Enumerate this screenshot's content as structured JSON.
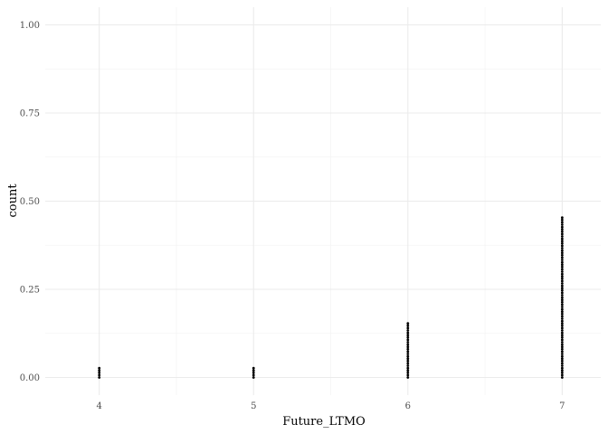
{
  "chart_data": {
    "type": "dotplot",
    "title": "",
    "xlabel": "Future_LTMO",
    "ylabel": "count",
    "xlim": [
      3.65,
      7.25
    ],
    "ylim": [
      -0.05,
      1.05
    ],
    "x_ticks": [
      4,
      5,
      6,
      7
    ],
    "x_tick_labels": [
      "4",
      "5",
      "6",
      "7"
    ],
    "y_ticks": [
      0.0,
      0.25,
      0.5,
      0.75,
      1.0
    ],
    "y_tick_labels": [
      "0.00",
      "0.25",
      "0.50",
      "0.75",
      "1.00"
    ],
    "grid": true,
    "series": [
      {
        "x": [
          4,
          5,
          6,
          7
        ],
        "values": [
          0.03,
          0.03,
          0.16,
          0.46
        ]
      }
    ],
    "colors": {
      "dot": "#000000",
      "grid_major": "#ebebeb",
      "grid_minor": "#f4f4f4",
      "background": "#ffffff"
    }
  }
}
